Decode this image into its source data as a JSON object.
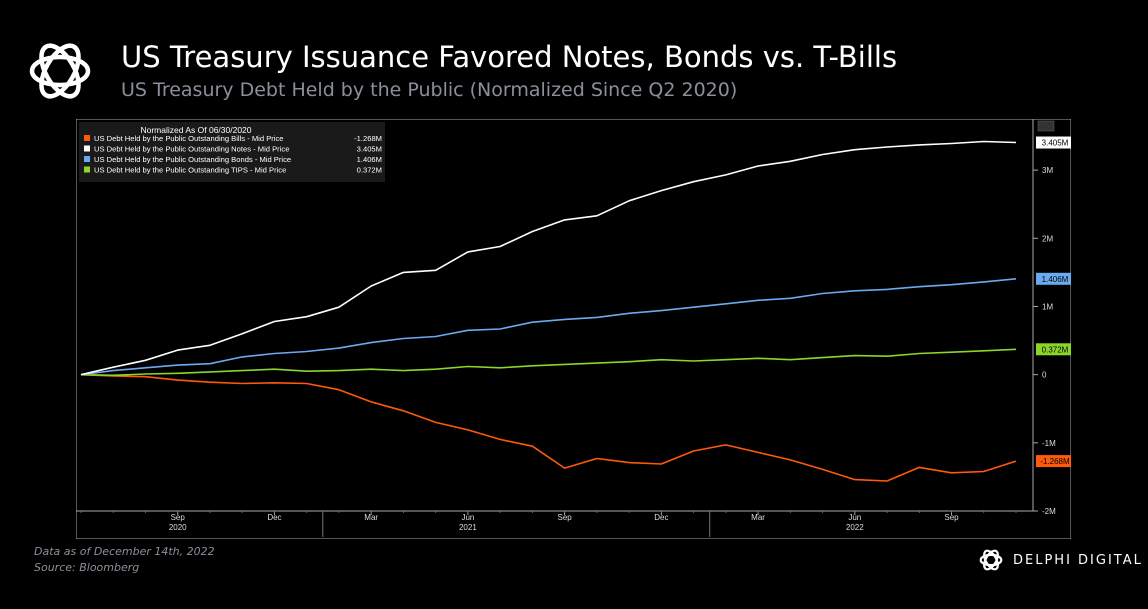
{
  "header": {
    "title": "US Treasury Issuance Favored Notes, Bonds vs. T-Bills",
    "subtitle": "US Treasury Debt Held by the Public (Normalized Since Q2 2020)"
  },
  "footer": {
    "data_note": "Data as of December  14th, 2022",
    "source": "Source: Bloomberg",
    "brand": "DELPHI DIGITAL"
  },
  "chart_data": {
    "type": "line",
    "legend_header": "Normalized As Of 06/30/2020",
    "legend_placement": "top-left",
    "ylim": [
      -2.0,
      3.75
    ],
    "yticks": [
      {
        "value": 3,
        "label": "3M"
      },
      {
        "value": 2,
        "label": "2M"
      },
      {
        "value": 1,
        "label": "1M"
      },
      {
        "value": 0,
        "label": "0"
      },
      {
        "value": -1,
        "label": "-1M"
      },
      {
        "value": -2,
        "label": "-2M"
      }
    ],
    "xticks": [
      {
        "label": "Sep",
        "i": 3
      },
      {
        "label": "Dec",
        "i": 6
      },
      {
        "label": "Mar",
        "i": 9
      },
      {
        "label": "Jun",
        "i": 12
      },
      {
        "label": "Sep",
        "i": 15
      },
      {
        "label": "Dec",
        "i": 18
      },
      {
        "label": "Mar",
        "i": 21
      },
      {
        "label": "Jun",
        "i": 24
      },
      {
        "label": "Sep",
        "i": 27
      }
    ],
    "years": [
      {
        "label": "2020",
        "i": 3
      },
      {
        "label": "2021",
        "i": 12
      },
      {
        "label": "2022",
        "i": 24
      }
    ],
    "x": [
      "2020-06",
      "2020-07",
      "2020-08",
      "2020-09",
      "2020-10",
      "2020-11",
      "2020-12",
      "2021-01",
      "2021-02",
      "2021-03",
      "2021-04",
      "2021-05",
      "2021-06",
      "2021-07",
      "2021-08",
      "2021-09",
      "2021-10",
      "2021-11",
      "2021-12",
      "2022-01",
      "2022-02",
      "2022-03",
      "2022-04",
      "2022-05",
      "2022-06",
      "2022-07",
      "2022-08",
      "2022-09",
      "2022-10",
      "2022-11"
    ],
    "series": [
      {
        "name": "US Debt Held by the Public Outstanding Bills - Mid Price",
        "last_label": "-1.268M",
        "color": "#ff5a0a",
        "values": [
          0,
          -0.02,
          -0.03,
          -0.08,
          -0.11,
          -0.13,
          -0.12,
          -0.13,
          -0.22,
          -0.4,
          -0.53,
          -0.7,
          -0.81,
          -0.95,
          -1.05,
          -1.37,
          -1.23,
          -1.29,
          -1.31,
          -1.12,
          -1.03,
          -1.14,
          -1.25,
          -1.39,
          -1.54,
          -1.56,
          -1.36,
          -1.44,
          -1.42,
          -1.268
        ]
      },
      {
        "name": "US Debt Held by the Public Outstanding Notes - Mid Price",
        "last_label": "3.405M",
        "color": "#ffffff",
        "values": [
          0,
          0.11,
          0.21,
          0.36,
          0.43,
          0.6,
          0.78,
          0.85,
          0.99,
          1.3,
          1.5,
          1.53,
          1.8,
          1.88,
          2.1,
          2.27,
          2.33,
          2.55,
          2.7,
          2.83,
          2.93,
          3.06,
          3.13,
          3.23,
          3.3,
          3.34,
          3.37,
          3.39,
          3.42,
          3.405
        ]
      },
      {
        "name": "US Debt Held by the Public Outstanding Bonds - Mid Price",
        "last_label": "1.406M",
        "color": "#6aaaf0",
        "values": [
          0,
          0.06,
          0.1,
          0.14,
          0.16,
          0.26,
          0.31,
          0.34,
          0.39,
          0.47,
          0.53,
          0.56,
          0.65,
          0.67,
          0.77,
          0.81,
          0.84,
          0.9,
          0.94,
          0.99,
          1.04,
          1.09,
          1.12,
          1.19,
          1.23,
          1.25,
          1.29,
          1.32,
          1.36,
          1.406
        ]
      },
      {
        "name": "US Debt Held by the Public Outstanding TIPS - Mid Price",
        "last_label": "0.372M",
        "color": "#8cd62a",
        "values": [
          0,
          -0.01,
          0.01,
          0.02,
          0.04,
          0.06,
          0.08,
          0.05,
          0.06,
          0.08,
          0.06,
          0.08,
          0.12,
          0.1,
          0.13,
          0.15,
          0.17,
          0.19,
          0.22,
          0.2,
          0.22,
          0.24,
          0.22,
          0.25,
          0.28,
          0.27,
          0.31,
          0.33,
          0.35,
          0.372
        ]
      }
    ]
  }
}
